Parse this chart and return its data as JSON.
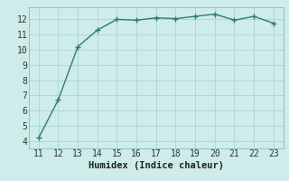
{
  "x": [
    11,
    12,
    13,
    14,
    15,
    16,
    17,
    18,
    19,
    20,
    21,
    22,
    23
  ],
  "y": [
    4.2,
    6.7,
    10.2,
    11.3,
    12.0,
    11.95,
    12.1,
    12.05,
    12.2,
    12.35,
    11.95,
    12.2,
    11.75
  ],
  "xlabel": "Humidex (Indice chaleur)",
  "xlim": [
    10.5,
    23.5
  ],
  "ylim": [
    3.5,
    12.8
  ],
  "xticks": [
    11,
    12,
    13,
    14,
    15,
    16,
    17,
    18,
    19,
    20,
    21,
    22,
    23
  ],
  "yticks": [
    4,
    5,
    6,
    7,
    8,
    9,
    10,
    11,
    12
  ],
  "line_color": "#2e7d6e",
  "bg_color": "#ceecea",
  "grid_color": "#aed8d4",
  "marker": "+",
  "marker_size": 4,
  "line_width": 1.0,
  "tick_fontsize": 7,
  "xlabel_fontsize": 7.5
}
